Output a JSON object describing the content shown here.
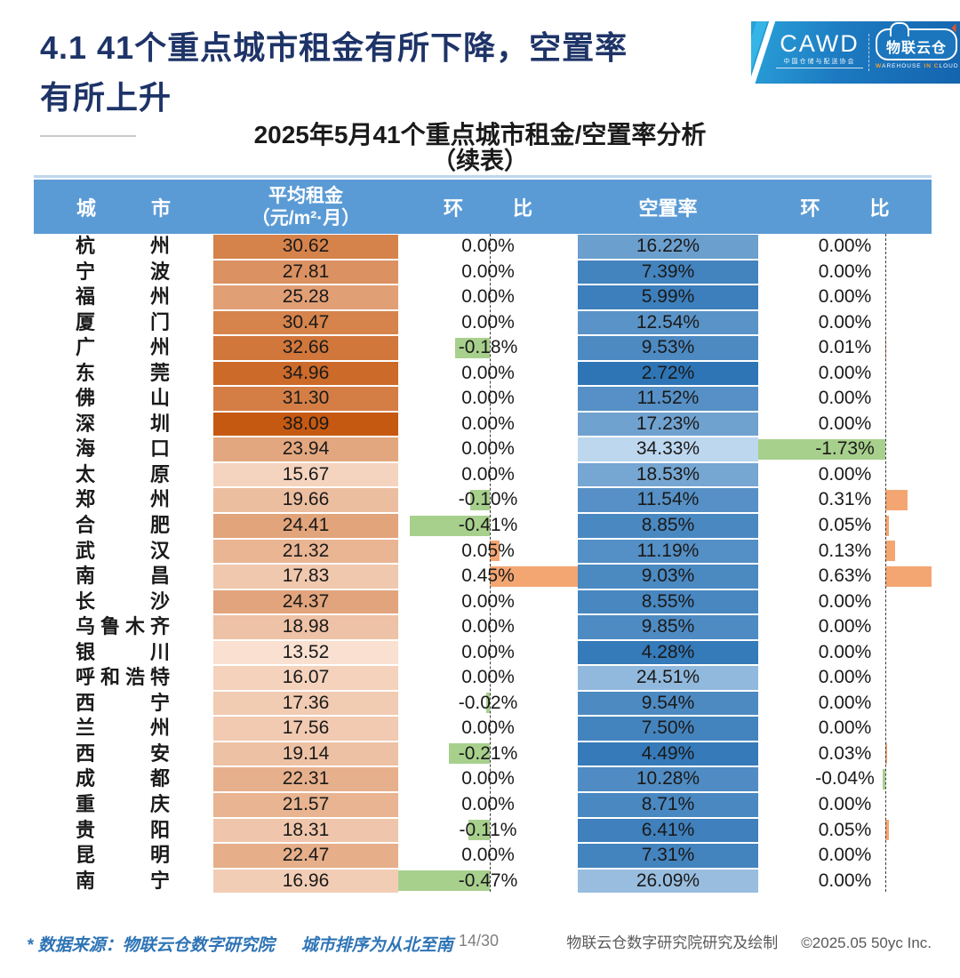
{
  "page": {
    "title_line1": "4.1 41个重点城市租金有所下降，空置率",
    "title_line2": "有所上升"
  },
  "logo": {
    "cawd": "CAWD",
    "cawd_caption": "中国仓储与配送协会",
    "brand": "物联云仓",
    "caption_w": "W",
    "caption_arehouse": "AREHOUSE",
    "caption_in": "IN",
    "caption_c": "C",
    "caption_loud": "LOUD"
  },
  "subtitle": {
    "line1": "2025年5月41个重点城市租金/空置率分析",
    "line2": "（续表）"
  },
  "table": {
    "header": {
      "city": "城市",
      "rent_line1": "平均租金",
      "rent_line2": "（元/m²·月）",
      "mom": "环比",
      "vacancy": "空置率"
    }
  },
  "chart_data": {
    "type": "table",
    "columns": [
      "城市",
      "平均租金（元/m²·月）",
      "环比",
      "空置率",
      "环比"
    ],
    "rows": [
      {
        "city": "杭州",
        "rent": "30.62",
        "rent_mom": "0.00%",
        "vacancy": "16.22%",
        "vacancy_mom": "0.00%"
      },
      {
        "city": "宁波",
        "rent": "27.81",
        "rent_mom": "0.00%",
        "vacancy": "7.39%",
        "vacancy_mom": "0.00%"
      },
      {
        "city": "福州",
        "rent": "25.28",
        "rent_mom": "0.00%",
        "vacancy": "5.99%",
        "vacancy_mom": "0.00%"
      },
      {
        "city": "厦门",
        "rent": "30.47",
        "rent_mom": "0.00%",
        "vacancy": "12.54%",
        "vacancy_mom": "0.00%"
      },
      {
        "city": "广州",
        "rent": "32.66",
        "rent_mom": "-0.18%",
        "vacancy": "9.53%",
        "vacancy_mom": "0.01%"
      },
      {
        "city": "东莞",
        "rent": "34.96",
        "rent_mom": "0.00%",
        "vacancy": "2.72%",
        "vacancy_mom": "0.00%"
      },
      {
        "city": "佛山",
        "rent": "31.30",
        "rent_mom": "0.00%",
        "vacancy": "11.52%",
        "vacancy_mom": "0.00%"
      },
      {
        "city": "深圳",
        "rent": "38.09",
        "rent_mom": "0.00%",
        "vacancy": "17.23%",
        "vacancy_mom": "0.00%"
      },
      {
        "city": "海口",
        "rent": "23.94",
        "rent_mom": "0.00%",
        "vacancy": "34.33%",
        "vacancy_mom": "-1.73%"
      },
      {
        "city": "太原",
        "rent": "15.67",
        "rent_mom": "0.00%",
        "vacancy": "18.53%",
        "vacancy_mom": "0.00%"
      },
      {
        "city": "郑州",
        "rent": "19.66",
        "rent_mom": "-0.10%",
        "vacancy": "11.54%",
        "vacancy_mom": "0.31%"
      },
      {
        "city": "合肥",
        "rent": "24.41",
        "rent_mom": "-0.41%",
        "vacancy": "8.85%",
        "vacancy_mom": "0.05%"
      },
      {
        "city": "武汉",
        "rent": "21.32",
        "rent_mom": "0.05%",
        "vacancy": "11.19%",
        "vacancy_mom": "0.13%"
      },
      {
        "city": "南昌",
        "rent": "17.83",
        "rent_mom": "0.45%",
        "vacancy": "9.03%",
        "vacancy_mom": "0.63%"
      },
      {
        "city": "长沙",
        "rent": "24.37",
        "rent_mom": "0.00%",
        "vacancy": "8.55%",
        "vacancy_mom": "0.00%"
      },
      {
        "city": "乌鲁木齐",
        "rent": "18.98",
        "rent_mom": "0.00%",
        "vacancy": "9.85%",
        "vacancy_mom": "0.00%"
      },
      {
        "city": "银川",
        "rent": "13.52",
        "rent_mom": "0.00%",
        "vacancy": "4.28%",
        "vacancy_mom": "0.00%"
      },
      {
        "city": "呼和浩特",
        "rent": "16.07",
        "rent_mom": "0.00%",
        "vacancy": "24.51%",
        "vacancy_mom": "0.00%"
      },
      {
        "city": "西宁",
        "rent": "17.36",
        "rent_mom": "-0.02%",
        "vacancy": "9.54%",
        "vacancy_mom": "0.00%"
      },
      {
        "city": "兰州",
        "rent": "17.56",
        "rent_mom": "0.00%",
        "vacancy": "7.50%",
        "vacancy_mom": "0.00%"
      },
      {
        "city": "西安",
        "rent": "19.14",
        "rent_mom": "-0.21%",
        "vacancy": "4.49%",
        "vacancy_mom": "0.03%"
      },
      {
        "city": "成都",
        "rent": "22.31",
        "rent_mom": "0.00%",
        "vacancy": "10.28%",
        "vacancy_mom": "-0.04%"
      },
      {
        "city": "重庆",
        "rent": "21.57",
        "rent_mom": "0.00%",
        "vacancy": "8.71%",
        "vacancy_mom": "0.00%"
      },
      {
        "city": "贵阳",
        "rent": "18.31",
        "rent_mom": "-0.11%",
        "vacancy": "6.41%",
        "vacancy_mom": "0.05%"
      },
      {
        "city": "昆明",
        "rent": "22.47",
        "rent_mom": "0.00%",
        "vacancy": "7.31%",
        "vacancy_mom": "0.00%"
      },
      {
        "city": "南宁",
        "rent": "16.96",
        "rent_mom": "-0.47%",
        "vacancy": "26.09%",
        "vacancy_mom": "0.00%"
      }
    ]
  },
  "styles": {
    "header_bg": "#5B9BD5",
    "rent_scale_light": "#F9E0D0",
    "rent_scale_dark": "#C65911",
    "vacancy_scale_dark": "#2E75B6",
    "vacancy_scale_light": "#BDD7EE",
    "bar_negative": "#A8D08D",
    "bar_positive": "#F4A672",
    "title_color": "#1E3468",
    "note_color": "#2E74B5"
  },
  "footer": {
    "note_source": "* 数据来源：物联云仓数字研究院",
    "note_order": "城市排序为从北至南",
    "page": "14/30",
    "credit": "物联云仓数字研究院研究及绘制",
    "copyright": "©2025.05 50yc Inc."
  }
}
